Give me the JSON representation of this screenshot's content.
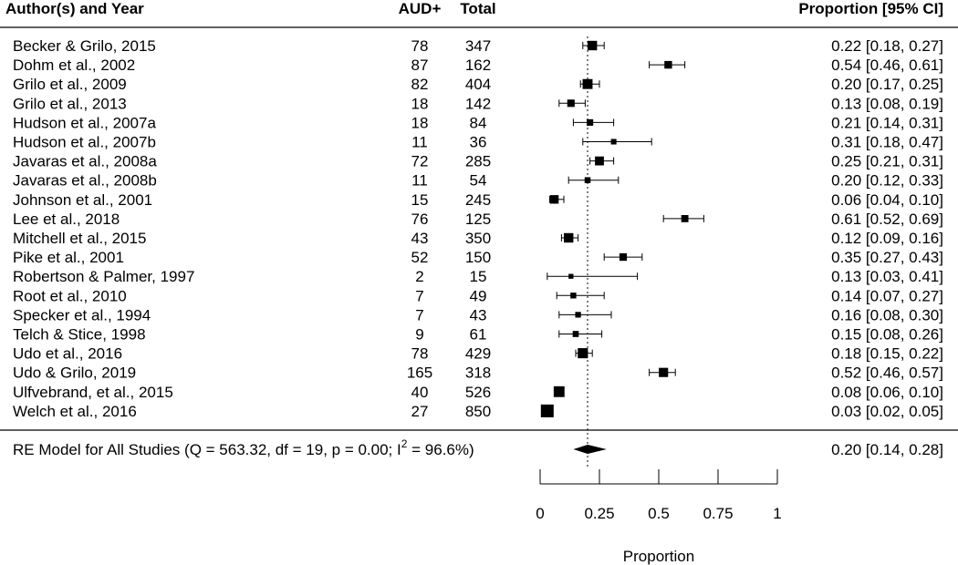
{
  "chart_data": {
    "type": "forest",
    "headers": {
      "study": "Author(s) and Year",
      "events": "AUD+",
      "total": "Total",
      "estimate": "Proportion [95% CI]"
    },
    "studies": [
      {
        "label": "Becker & Grilo, 2015",
        "events": "78",
        "total": "347",
        "est": 0.22,
        "lo": 0.18,
        "hi": 0.27,
        "ci_text": "0.22 [0.18, 0.27]"
      },
      {
        "label": "Dohm et al., 2002",
        "events": "87",
        "total": "162",
        "est": 0.54,
        "lo": 0.46,
        "hi": 0.61,
        "ci_text": "0.54 [0.46, 0.61]"
      },
      {
        "label": "Grilo et al., 2009",
        "events": "82",
        "total": "404",
        "est": 0.2,
        "lo": 0.17,
        "hi": 0.25,
        "ci_text": "0.20 [0.17, 0.25]"
      },
      {
        "label": "Grilo et al., 2013",
        "events": "18",
        "total": "142",
        "est": 0.13,
        "lo": 0.08,
        "hi": 0.19,
        "ci_text": "0.13 [0.08, 0.19]"
      },
      {
        "label": "Hudson et al., 2007a",
        "events": "18",
        "total": "84",
        "est": 0.21,
        "lo": 0.14,
        "hi": 0.31,
        "ci_text": "0.21 [0.14, 0.31]"
      },
      {
        "label": "Hudson et al., 2007b",
        "events": "11",
        "total": "36",
        "est": 0.31,
        "lo": 0.18,
        "hi": 0.47,
        "ci_text": "0.31 [0.18, 0.47]"
      },
      {
        "label": "Javaras et al., 2008a",
        "events": "72",
        "total": "285",
        "est": 0.25,
        "lo": 0.21,
        "hi": 0.31,
        "ci_text": "0.25 [0.21, 0.31]"
      },
      {
        "label": "Javaras et al., 2008b",
        "events": "11",
        "total": "54",
        "est": 0.2,
        "lo": 0.12,
        "hi": 0.33,
        "ci_text": "0.20 [0.12, 0.33]"
      },
      {
        "label": "Johnson et al., 2001",
        "events": "15",
        "total": "245",
        "est": 0.06,
        "lo": 0.04,
        "hi": 0.1,
        "ci_text": "0.06 [0.04, 0.10]"
      },
      {
        "label": "Lee et al., 2018",
        "events": "76",
        "total": "125",
        "est": 0.61,
        "lo": 0.52,
        "hi": 0.69,
        "ci_text": "0.61 [0.52, 0.69]"
      },
      {
        "label": "Mitchell et al., 2015",
        "events": "43",
        "total": "350",
        "est": 0.12,
        "lo": 0.09,
        "hi": 0.16,
        "ci_text": "0.12 [0.09, 0.16]"
      },
      {
        "label": "Pike et al., 2001",
        "events": "52",
        "total": "150",
        "est": 0.35,
        "lo": 0.27,
        "hi": 0.43,
        "ci_text": "0.35 [0.27, 0.43]"
      },
      {
        "label": "Robertson & Palmer, 1997",
        "events": "2",
        "total": "15",
        "est": 0.13,
        "lo": 0.03,
        "hi": 0.41,
        "ci_text": "0.13 [0.03, 0.41]"
      },
      {
        "label": "Root et al., 2010",
        "events": "7",
        "total": "49",
        "est": 0.14,
        "lo": 0.07,
        "hi": 0.27,
        "ci_text": "0.14 [0.07, 0.27]"
      },
      {
        "label": "Specker et al., 1994",
        "events": "7",
        "total": "43",
        "est": 0.16,
        "lo": 0.08,
        "hi": 0.3,
        "ci_text": "0.16 [0.08, 0.30]"
      },
      {
        "label": "Telch & Stice, 1998",
        "events": "9",
        "total": "61",
        "est": 0.15,
        "lo": 0.08,
        "hi": 0.26,
        "ci_text": "0.15 [0.08, 0.26]"
      },
      {
        "label": "Udo et al., 2016",
        "events": "78",
        "total": "429",
        "est": 0.18,
        "lo": 0.15,
        "hi": 0.22,
        "ci_text": "0.18 [0.15, 0.22]"
      },
      {
        "label": "Udo & Grilo, 2019",
        "events": "165",
        "total": "318",
        "est": 0.52,
        "lo": 0.46,
        "hi": 0.57,
        "ci_text": "0.52 [0.46, 0.57]"
      },
      {
        "label": "Ulfvebrand, et al., 2015",
        "events": "40",
        "total": "526",
        "est": 0.08,
        "lo": 0.06,
        "hi": 0.1,
        "ci_text": "0.08 [0.06, 0.10]"
      },
      {
        "label": "Welch et al., 2016",
        "events": "27",
        "total": "850",
        "est": 0.03,
        "lo": 0.02,
        "hi": 0.05,
        "ci_text": "0.03 [0.02, 0.05]"
      }
    ],
    "summary": {
      "label_prefix": "RE Model for All Studies (Q = 563.32, df = 19, p = 0.00; I",
      "label_sup": "2",
      "label_suffix": " = 96.6%)",
      "est": 0.2,
      "lo": 0.14,
      "hi": 0.28,
      "ci_text": "0.20 [0.14, 0.28]"
    },
    "reference_line": 0.2,
    "xlim": [
      0,
      1
    ],
    "ticks": [
      0,
      0.25,
      0.5,
      0.75,
      1
    ],
    "tick_labels": [
      "0",
      "0.25",
      "0.5",
      "0.75",
      "1"
    ],
    "xlabel": "Proportion"
  }
}
